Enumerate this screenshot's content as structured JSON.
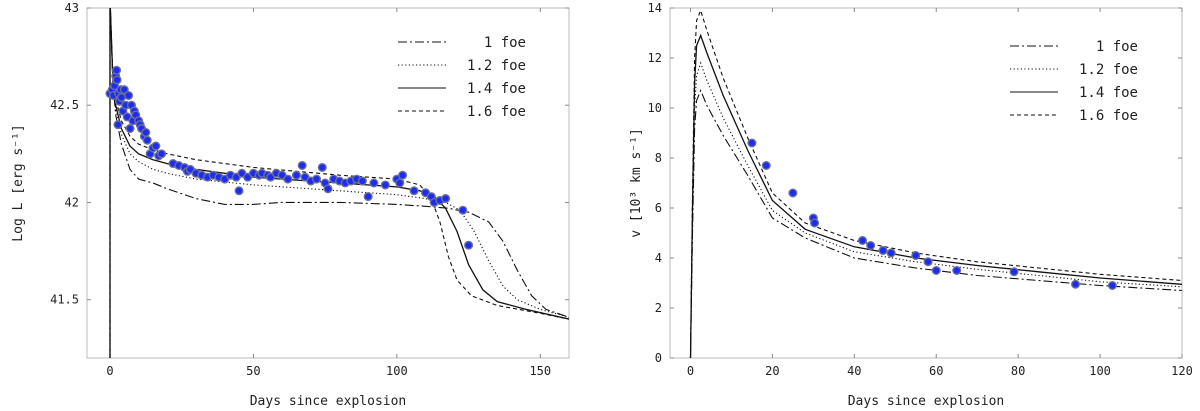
{
  "chart_data": [
    {
      "type": "line",
      "panel": "left",
      "xlabel": "Days since explosion",
      "ylabel": "Log L [erg s⁻¹]",
      "xlim": [
        -8,
        160
      ],
      "ylim": [
        41.2,
        43
      ],
      "xticks": [
        0,
        50,
        100,
        150
      ],
      "yticks": [
        41.5,
        42,
        42.5,
        43
      ],
      "xtick_labels": [
        "0",
        "50",
        "100",
        "150"
      ],
      "ytick_labels": [
        "41.5",
        "42",
        "42.5",
        "43"
      ],
      "legend": {
        "position": "top-right",
        "entries": [
          "1 foe",
          "1.2 foe",
          "1.4 foe",
          "1.6 foe"
        ]
      },
      "series": [
        {
          "name": "1 foe",
          "dash": "dashdot",
          "points": [
            [
              0,
              41.2
            ],
            [
              0,
              43.05
            ],
            [
              1,
              42.62
            ],
            [
              2,
              42.45
            ],
            [
              4,
              42.3
            ],
            [
              7,
              42.17
            ],
            [
              10,
              42.12
            ],
            [
              15,
              42.1
            ],
            [
              20,
              42.07
            ],
            [
              30,
              42.02
            ],
            [
              40,
              41.99
            ],
            [
              50,
              41.99
            ],
            [
              60,
              42.0
            ],
            [
              80,
              42.0
            ],
            [
              100,
              41.99
            ],
            [
              110,
              41.98
            ],
            [
              118,
              41.97
            ],
            [
              125,
              41.95
            ],
            [
              132,
              41.9
            ],
            [
              137,
              41.8
            ],
            [
              142,
              41.65
            ],
            [
              147,
              41.52
            ],
            [
              152,
              41.45
            ],
            [
              160,
              41.41
            ]
          ]
        },
        {
          "name": "1.2 foe",
          "dash": "dotted",
          "points": [
            [
              0,
              41.2
            ],
            [
              0,
              43.05
            ],
            [
              1,
              42.63
            ],
            [
              2,
              42.48
            ],
            [
              4,
              42.35
            ],
            [
              7,
              42.25
            ],
            [
              10,
              42.21
            ],
            [
              15,
              42.17
            ],
            [
              20,
              42.15
            ],
            [
              30,
              42.12
            ],
            [
              50,
              42.09
            ],
            [
              80,
              42.06
            ],
            [
              100,
              42.04
            ],
            [
              110,
              42.02
            ],
            [
              117,
              42.0
            ],
            [
              122,
              41.96
            ],
            [
              127,
              41.85
            ],
            [
              132,
              41.7
            ],
            [
              137,
              41.57
            ],
            [
              142,
              41.5
            ],
            [
              150,
              41.45
            ],
            [
              160,
              41.41
            ]
          ]
        },
        {
          "name": "1.4 foe",
          "dash": "solid",
          "points": [
            [
              0,
              41.2
            ],
            [
              0,
              43.05
            ],
            [
              1,
              42.64
            ],
            [
              2,
              42.5
            ],
            [
              4,
              42.38
            ],
            [
              7,
              42.29
            ],
            [
              10,
              42.25
            ],
            [
              15,
              42.22
            ],
            [
              20,
              42.2
            ],
            [
              30,
              42.17
            ],
            [
              50,
              42.13
            ],
            [
              80,
              42.1
            ],
            [
              100,
              42.08
            ],
            [
              108,
              42.06
            ],
            [
              113,
              42.03
            ],
            [
              117,
              41.97
            ],
            [
              121,
              41.85
            ],
            [
              125,
              41.68
            ],
            [
              130,
              41.55
            ],
            [
              135,
              41.49
            ],
            [
              145,
              41.45
            ],
            [
              160,
              41.4
            ]
          ]
        },
        {
          "name": "1.6 foe",
          "dash": "dashed",
          "points": [
            [
              0,
              41.2
            ],
            [
              0,
              43.05
            ],
            [
              1,
              42.66
            ],
            [
              2,
              42.53
            ],
            [
              4,
              42.42
            ],
            [
              7,
              42.34
            ],
            [
              10,
              42.3
            ],
            [
              15,
              42.27
            ],
            [
              20,
              42.25
            ],
            [
              30,
              42.22
            ],
            [
              50,
              42.18
            ],
            [
              80,
              42.14
            ],
            [
              100,
              42.12
            ],
            [
              108,
              42.09
            ],
            [
              112,
              42.02
            ],
            [
              115,
              41.9
            ],
            [
              118,
              41.72
            ],
            [
              121,
              41.6
            ],
            [
              126,
              41.52
            ],
            [
              135,
              41.47
            ],
            [
              150,
              41.43
            ],
            [
              160,
              41.4
            ]
          ]
        }
      ],
      "observations": [
        [
          0,
          42.56
        ],
        [
          0.8,
          42.58
        ],
        [
          1.2,
          42.55
        ],
        [
          1.6,
          42.6
        ],
        [
          2,
          42.65
        ],
        [
          2.3,
          42.68
        ],
        [
          2.5,
          42.63
        ],
        [
          2.8,
          42.4
        ],
        [
          3,
          42.56
        ],
        [
          3.3,
          42.52
        ],
        [
          3.8,
          42.58
        ],
        [
          4,
          42.54
        ],
        [
          4.5,
          42.47
        ],
        [
          5,
          42.58
        ],
        [
          5.5,
          42.5
        ],
        [
          6,
          42.44
        ],
        [
          6.5,
          42.55
        ],
        [
          7,
          42.38
        ],
        [
          7.5,
          42.5
        ],
        [
          8,
          42.42
        ],
        [
          8.5,
          42.47
        ],
        [
          9,
          42.45
        ],
        [
          10,
          42.42
        ],
        [
          10.5,
          42.4
        ],
        [
          11,
          42.38
        ],
        [
          12,
          42.34
        ],
        [
          12.5,
          42.36
        ],
        [
          13,
          42.32
        ],
        [
          14,
          42.25
        ],
        [
          15,
          42.28
        ],
        [
          16,
          42.29
        ],
        [
          17,
          42.24
        ],
        [
          18,
          42.25
        ],
        [
          22,
          42.2
        ],
        [
          24,
          42.19
        ],
        [
          26,
          42.18
        ],
        [
          27,
          42.16
        ],
        [
          28,
          42.17
        ],
        [
          30,
          42.15
        ],
        [
          32,
          42.14
        ],
        [
          34,
          42.13
        ],
        [
          36,
          42.14
        ],
        [
          38,
          42.13
        ],
        [
          40,
          42.12
        ],
        [
          42,
          42.14
        ],
        [
          44,
          42.13
        ],
        [
          45,
          42.06
        ],
        [
          46,
          42.15
        ],
        [
          48,
          42.13
        ],
        [
          50,
          42.15
        ],
        [
          52,
          42.14
        ],
        [
          53,
          42.15
        ],
        [
          55,
          42.14
        ],
        [
          56,
          42.13
        ],
        [
          58,
          42.15
        ],
        [
          60,
          42.14
        ],
        [
          62,
          42.12
        ],
        [
          65,
          42.14
        ],
        [
          67,
          42.19
        ],
        [
          68,
          42.13
        ],
        [
          70,
          42.11
        ],
        [
          72,
          42.12
        ],
        [
          74,
          42.18
        ],
        [
          75,
          42.1
        ],
        [
          76,
          42.07
        ],
        [
          78,
          42.12
        ],
        [
          80,
          42.11
        ],
        [
          82,
          42.1
        ],
        [
          84,
          42.11
        ],
        [
          86,
          42.12
        ],
        [
          88,
          42.11
        ],
        [
          90,
          42.03
        ],
        [
          92,
          42.1
        ],
        [
          96,
          42.09
        ],
        [
          100,
          42.12
        ],
        [
          101,
          42.1
        ],
        [
          102,
          42.14
        ],
        [
          106,
          42.06
        ],
        [
          110,
          42.05
        ],
        [
          112,
          42.03
        ],
        [
          113,
          42.0
        ],
        [
          115,
          42.01
        ],
        [
          117,
          42.02
        ],
        [
          123,
          41.96
        ],
        [
          125,
          41.78
        ]
      ]
    },
    {
      "type": "line",
      "panel": "right",
      "xlabel": "Days since explosion",
      "ylabel": "v [10³ km s⁻¹]",
      "xlim": [
        -5,
        120
      ],
      "ylim": [
        0,
        14
      ],
      "xticks": [
        0,
        20,
        40,
        60,
        80,
        100,
        120
      ],
      "yticks": [
        0,
        2,
        4,
        6,
        8,
        10,
        12,
        14
      ],
      "xtick_labels": [
        "0",
        "20",
        "40",
        "60",
        "80",
        "100",
        "120"
      ],
      "ytick_labels": [
        "0",
        "2",
        "4",
        "6",
        "8",
        "10",
        "12",
        "14"
      ],
      "legend": {
        "position": "top-right",
        "entries": [
          "1 foe",
          "1.2 foe",
          "1.4 foe",
          "1.6 foe"
        ]
      },
      "series": [
        {
          "name": "1 foe",
          "dash": "dashdot",
          "points": [
            [
              0,
              0
            ],
            [
              0.5,
              5
            ],
            [
              1,
              9.2
            ],
            [
              1.5,
              10.3
            ],
            [
              2.5,
              10.7
            ],
            [
              4,
              10.1
            ],
            [
              8,
              8.9
            ],
            [
              14,
              7.3
            ],
            [
              20,
              5.6
            ],
            [
              28,
              4.8
            ],
            [
              40,
              4.0
            ],
            [
              55,
              3.6
            ],
            [
              70,
              3.3
            ],
            [
              85,
              3.1
            ],
            [
              100,
              2.9
            ],
            [
              120,
              2.7
            ]
          ]
        },
        {
          "name": "1.2 foe",
          "dash": "dotted",
          "points": [
            [
              0,
              0
            ],
            [
              0.5,
              5.5
            ],
            [
              1,
              10
            ],
            [
              1.5,
              11.3
            ],
            [
              2.5,
              11.8
            ],
            [
              4,
              11.1
            ],
            [
              8,
              9.6
            ],
            [
              14,
              7.7
            ],
            [
              20,
              5.9
            ],
            [
              28,
              5.0
            ],
            [
              40,
              4.25
            ],
            [
              55,
              3.85
            ],
            [
              70,
              3.55
            ],
            [
              85,
              3.3
            ],
            [
              100,
              3.05
            ],
            [
              120,
              2.85
            ]
          ]
        },
        {
          "name": "1.4 foe",
          "dash": "solid",
          "points": [
            [
              0,
              0
            ],
            [
              0.5,
              6
            ],
            [
              1,
              11
            ],
            [
              1.5,
              12.5
            ],
            [
              2.5,
              12.9
            ],
            [
              4,
              12.2
            ],
            [
              8,
              10.5
            ],
            [
              14,
              8.3
            ],
            [
              20,
              6.3
            ],
            [
              28,
              5.15
            ],
            [
              40,
              4.45
            ],
            [
              55,
              4.0
            ],
            [
              70,
              3.7
            ],
            [
              85,
              3.45
            ],
            [
              100,
              3.2
            ],
            [
              120,
              2.95
            ]
          ]
        },
        {
          "name": "1.6 foe",
          "dash": "dashed",
          "points": [
            [
              0,
              0
            ],
            [
              0.5,
              6.5
            ],
            [
              1,
              12
            ],
            [
              1.5,
              13.5
            ],
            [
              2.5,
              13.9
            ],
            [
              4,
              13.1
            ],
            [
              8,
              11.2
            ],
            [
              14,
              8.8
            ],
            [
              20,
              6.6
            ],
            [
              28,
              5.4
            ],
            [
              40,
              4.7
            ],
            [
              55,
              4.2
            ],
            [
              70,
              3.85
            ],
            [
              85,
              3.6
            ],
            [
              100,
              3.35
            ],
            [
              120,
              3.1
            ]
          ]
        }
      ],
      "observations": [
        [
          15,
          8.6
        ],
        [
          18.5,
          7.7
        ],
        [
          25,
          6.6
        ],
        [
          30,
          5.6
        ],
        [
          30.3,
          5.4
        ],
        [
          42,
          4.7
        ],
        [
          44,
          4.5
        ],
        [
          47,
          4.3
        ],
        [
          49,
          4.2
        ],
        [
          55,
          4.1
        ],
        [
          58,
          3.85
        ],
        [
          60,
          3.5
        ],
        [
          65,
          3.5
        ],
        [
          79,
          3.45
        ],
        [
          94,
          2.95
        ],
        [
          103,
          2.9
        ]
      ]
    }
  ]
}
